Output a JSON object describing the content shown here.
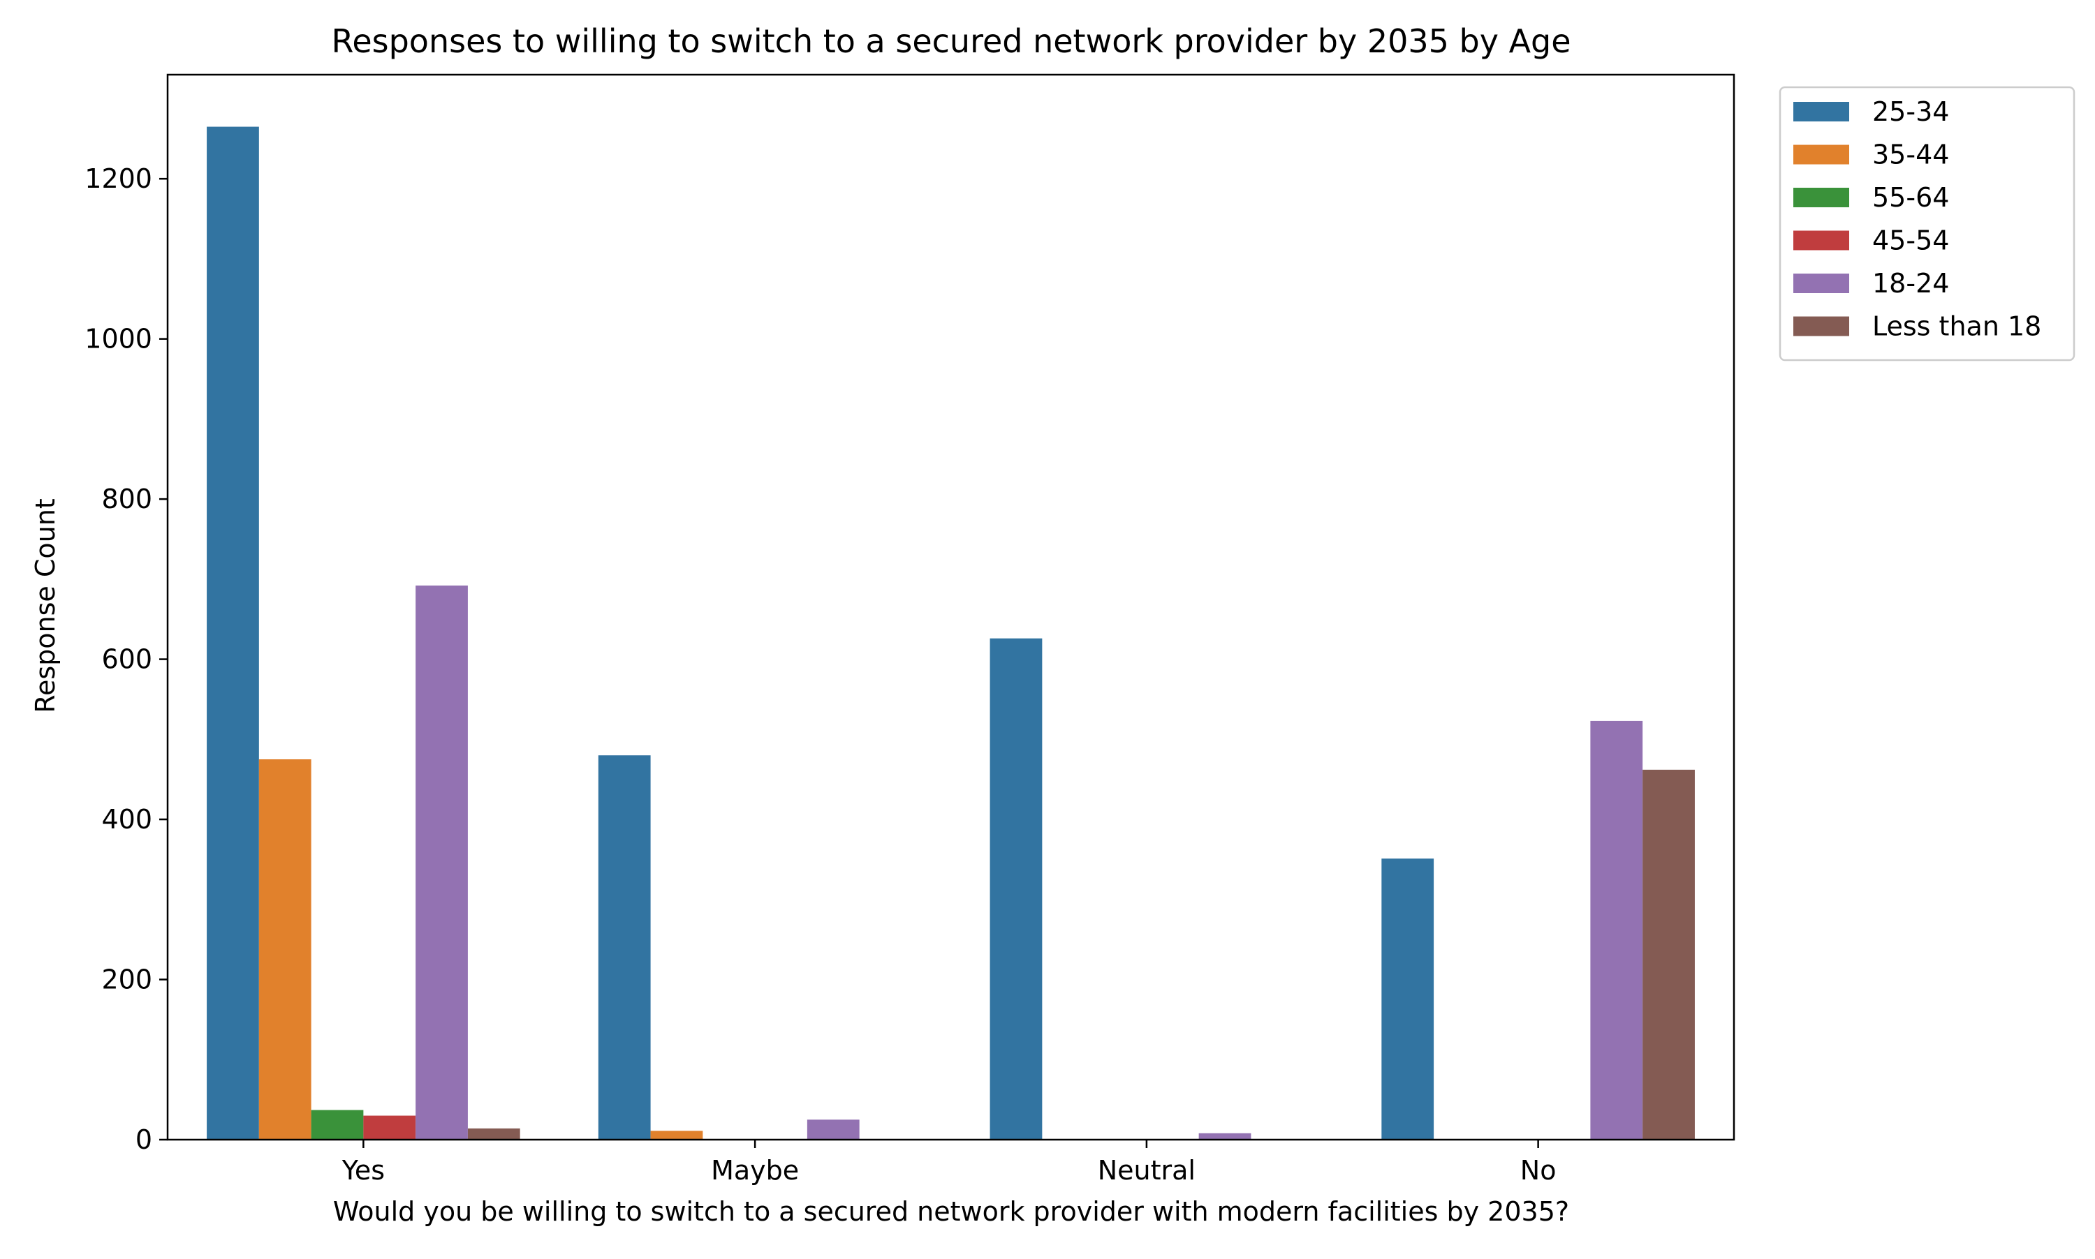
{
  "chart_data": {
    "type": "bar",
    "title": "Responses to willing to switch to a secured network provider by 2035 by Age",
    "xlabel": "Would you be willing to switch to a secured network provider with modern facilities by 2035?",
    "ylabel": "Response Count",
    "categories": [
      "Yes",
      "Maybe",
      "Neutral",
      "No"
    ],
    "ylim": [
      0,
      1330
    ],
    "yticks": [
      0,
      200,
      400,
      600,
      800,
      1000,
      1200
    ],
    "grid": false,
    "legend_position": "outside top-right",
    "series": [
      {
        "name": "25-34",
        "color": "#3274a1",
        "values": [
          1265,
          480,
          626,
          351
        ]
      },
      {
        "name": "35-44",
        "color": "#e1812c",
        "values": [
          475,
          11,
          0,
          0
        ]
      },
      {
        "name": "55-64",
        "color": "#3a923a",
        "values": [
          37,
          0,
          0,
          0
        ]
      },
      {
        "name": "45-54",
        "color": "#c03d3e",
        "values": [
          30,
          0,
          0,
          0
        ]
      },
      {
        "name": "18-24",
        "color": "#9372b2",
        "values": [
          692,
          25,
          8,
          523
        ]
      },
      {
        "name": "Less than 18",
        "color": "#845b53",
        "values": [
          14,
          0,
          0,
          462
        ]
      }
    ]
  }
}
